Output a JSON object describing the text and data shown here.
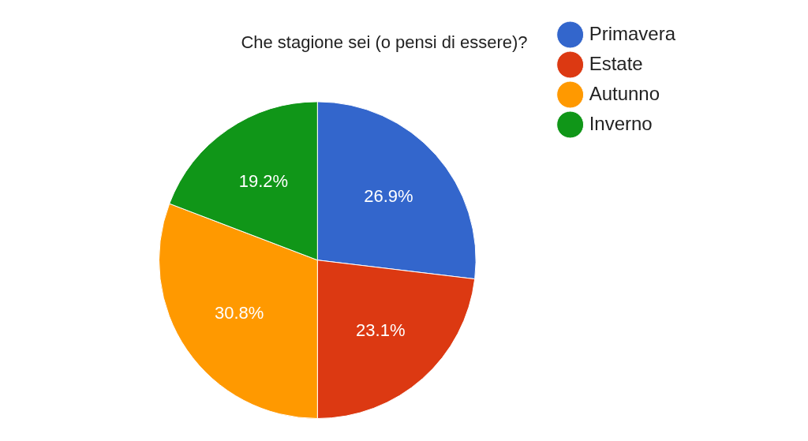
{
  "chart_data": {
    "type": "pie",
    "title": "Che stagione sei (o pensi di essere)?",
    "categories": [
      "Primavera",
      "Estate",
      "Autunno",
      "Inverno"
    ],
    "values": [
      26.9,
      23.1,
      30.8,
      19.2
    ],
    "colors": [
      "#3366cc",
      "#dc3912",
      "#ff9900",
      "#109618"
    ],
    "value_labels": [
      "26.9%",
      "23.1%",
      "30.8%",
      "19.2%"
    ],
    "legend": "right"
  }
}
